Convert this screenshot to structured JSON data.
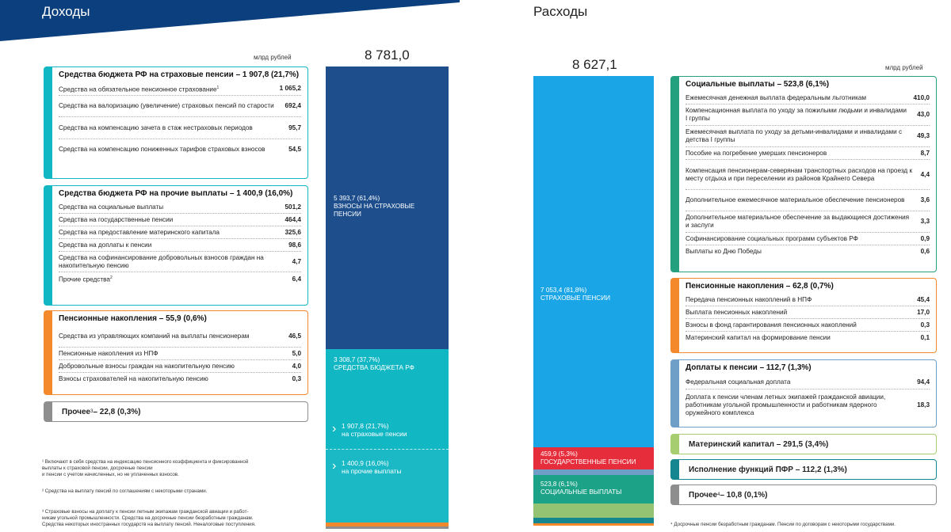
{
  "colors": {
    "navy": "#0c3f7d",
    "blue_dark": "#1e4f8c",
    "teal": "#12b7c4",
    "cyan": "#1aa6e6",
    "red": "#e52d3b",
    "green_teal": "#1ba287",
    "olive": "#95c374",
    "orange": "#f3892b",
    "grey": "#8e8e8e",
    "steel": "#6f9ec7",
    "lime": "#a6cd6f",
    "dark_teal": "#14868f",
    "emerald": "#23a07e"
  },
  "income": {
    "heading": "Доходы",
    "unit": "млрд рублей",
    "total": "8 781,0",
    "cards": [
      {
        "title": "Средства бюджета РФ на страховые пенсии – 1 907,8 (21,7%)",
        "rows": [
          {
            "label": "Средства на обязательное пенсионное страхование",
            "sup": "1",
            "value": "1 065,2"
          },
          {
            "label": "Средства на валоризацию (увеличение) страховых пенсий по старости",
            "value": "692,4"
          },
          {
            "label": "Средства на компенсацию зачета в стаж нестраховых периодов",
            "value": "95,7"
          },
          {
            "label": "Средства на компенсацию пониженных тарифов страховых взносов",
            "value": "54,5"
          }
        ]
      },
      {
        "title": "Средства бюджета РФ на прочие выплаты – 1 400,9 (16,0%)",
        "rows": [
          {
            "label": "Средства на социальные выплаты",
            "value": "501,2"
          },
          {
            "label": "Средства на государственные пенсии",
            "value": "464,4"
          },
          {
            "label": "Средства на предоставление материнского капитала",
            "value": "325,6"
          },
          {
            "label": "Средства на доплаты к пенсии",
            "value": "98,6"
          },
          {
            "label": "Средства на софинансирование добровольных взносов граждан на накопительную пенсию",
            "value": "4,7"
          },
          {
            "label": "Прочие средства",
            "sup": "2",
            "value": "6,4"
          }
        ]
      },
      {
        "title": "Пенсионные накопления – 55,9 (0,6%)",
        "rows": [
          {
            "label": "Средства из управляющих компаний на выплаты пенсионерам",
            "value": "46,5"
          },
          {
            "label": "Пенсионные накопления из НПФ",
            "value": "5,0"
          },
          {
            "label": "Добровольные взносы граждан на накопительную пенсию",
            "value": "4,0"
          },
          {
            "label": "Взносы страхователей на накопительную пенсию",
            "value": "0,3"
          }
        ]
      }
    ],
    "other": {
      "label": "Прочее",
      "sup": "3",
      "value": " – 22,8 (0,3%)"
    },
    "bar": [
      {
        "line1": "5 393,7 (61,4%)",
        "line2": "ВЗНОСЫ НА СТРАХОВЫЕ",
        "line3": "ПЕНСИИ",
        "share": 61.4
      },
      {
        "line1": "3 308,7 (37,7%)",
        "line2": "СРЕДСТВА БЮДЖЕТА РФ",
        "share": 37.7
      }
    ],
    "bar_sub": [
      {
        "line1": "1 907,8 (21,7%)",
        "line2": "на страховые пенсии"
      },
      {
        "line1": "1 400,9 (16,0%)",
        "line2": "на прочие выплаты"
      }
    ],
    "footnotes": [
      "¹ Включают в себя средства на индексацию пенсионного коэффициента и фиксированной",
      "выплаты к страховой пенсии, досрочные пенсии",
      "и пенсии с учетом начисленных, но не уплаченных взносов.",
      "² Средства на выплату пенсий по соглашениям с некоторыми странами.",
      "³ Страховые взносы на доплату к пенсии летным экипажам гражданской авиации и работ-",
      "никам угольной промышленности. Средства на досрочные пенсии безработным гражданам.",
      "Средства некоторых иностранных государств на выплату пенсий. Неналоговые поступления."
    ]
  },
  "expenses": {
    "heading": "Расходы",
    "unit": "млрд рублей",
    "total": "8 627,1",
    "bar": [
      {
        "line1": "7 053,4 (81,8%)",
        "line2": "СТРАХОВЫЕ ПЕНСИИ",
        "share": 81.8
      },
      {
        "line1": "459,9 (5,3%)",
        "line2": "ГОСУДАРСТВЕННЫЕ ПЕНСИИ",
        "share": 5.3
      },
      {
        "line1": "523,8 (6,1%)",
        "line2": "СОЦИАЛЬНЫЕ ВЫПЛАТЫ",
        "share": 6.1
      }
    ],
    "cards": [
      {
        "title": "Социальные выплаты – 523,8 (6,1%)",
        "rows": [
          {
            "label": "Ежемесячная денежная выплата федеральным льготникам",
            "value": "410,0"
          },
          {
            "label": "Компенсационная выплата по уходу за пожилыми людьми и инвалидами I группы",
            "value": "43,0"
          },
          {
            "label": "Ежемесячная выплата по уходу за детьми-инвалидами и инвалидами с детства I группы",
            "value": "49,3"
          },
          {
            "label": "Пособие на погребение умерших пенсионеров",
            "value": "8,7"
          },
          {
            "label": "Компенсация пенсионерам-северянам транспортных расходов на проезд к месту отдыха и при переселении из районов Крайнего Севера",
            "value": "4,4"
          },
          {
            "label": "Дополнительное ежемесячное материальное обеспечение пенсионеров",
            "value": "3,6"
          },
          {
            "label": "Дополнительное материальное обеспечение за выдающиеся достижения и заслуги",
            "value": "3,3"
          },
          {
            "label": "Софинансирование социальных программ субъектов РФ",
            "value": "0,9"
          },
          {
            "label": "Выплаты ко Дню Победы",
            "value": "0,6"
          }
        ]
      },
      {
        "title": "Пенсионные накопления – 62,8 (0,7%)",
        "rows": [
          {
            "label": "Передача пенсионных накоплений в НПФ",
            "value": "45,4"
          },
          {
            "label": "Выплата пенсионных накоплений",
            "value": "17,0"
          },
          {
            "label": "Взносы в фонд гарантирования пенсионных накоплений",
            "value": "0,3"
          },
          {
            "label": "Материнский капитал на формирование пенсии",
            "value": "0,1"
          }
        ]
      },
      {
        "title": "Доплаты к пенсии – 112,7 (1,3%)",
        "rows": [
          {
            "label": "Федеральная социальная доплата",
            "value": "94,4"
          },
          {
            "label": "Доплата к пенсии членам летных экипажей гражданской авиации, работникам угольной промышленности и работникам ядерного оружейного комплекса",
            "value": "18,3"
          }
        ]
      }
    ],
    "pills": [
      {
        "label": "Материнский капитал – 291,5 (3,4%)"
      },
      {
        "label": "Исполнение функций ПФР – 112,2 (1,3%)"
      },
      {
        "label": "Прочее",
        "sup": "4",
        "value": " – 10,8 (0,1%)"
      }
    ],
    "footnote": "⁴ Досрочные пенсии безработным гражданам. Пенсии по договорам с некоторыми государствами."
  }
}
